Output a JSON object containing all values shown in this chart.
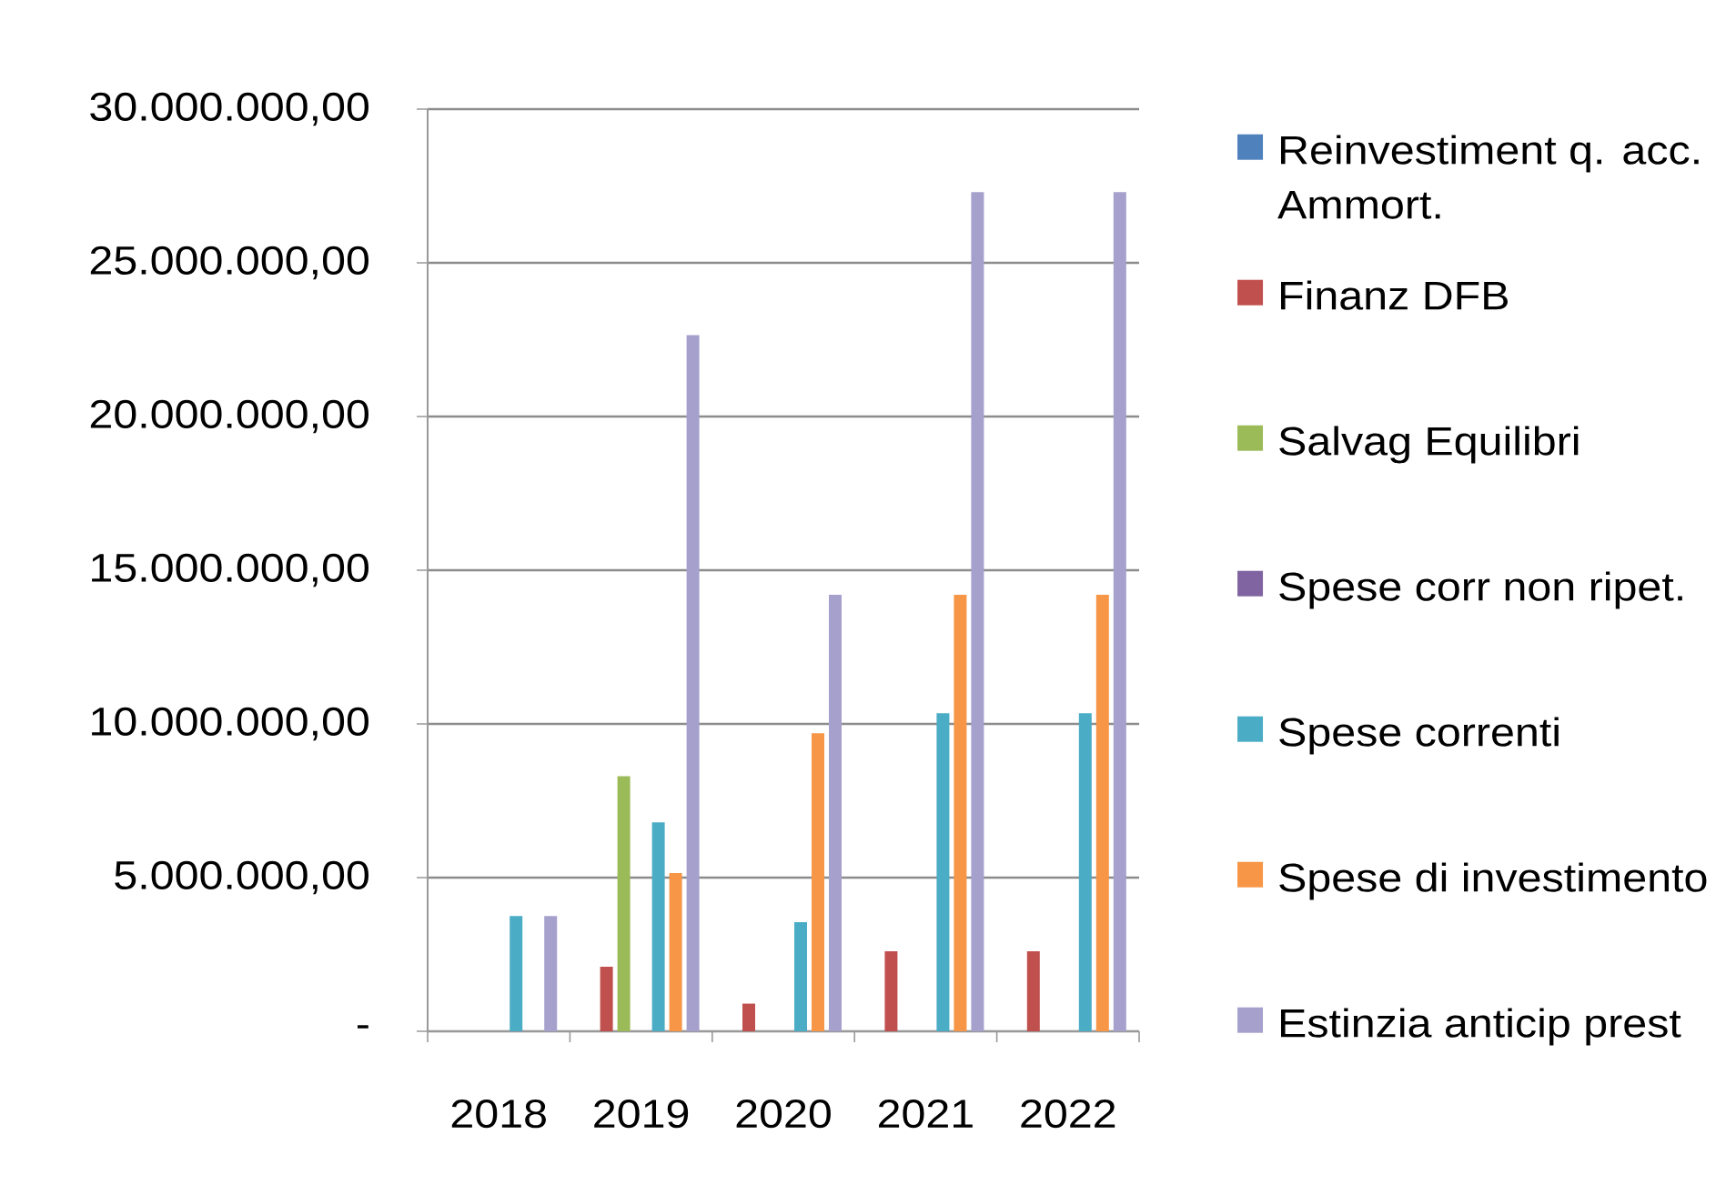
{
  "chart_data": {
    "type": "bar",
    "categories": [
      "2018",
      "2019",
      "2020",
      "2021",
      "2022"
    ],
    "series": [
      {
        "name": "Reinvestiment q. acc. Ammort.",
        "color": "#4f81bd",
        "values": [
          0,
          0,
          0,
          0,
          0
        ]
      },
      {
        "name": "Finanz DFB",
        "color": "#c0504d",
        "values": [
          0,
          2100000,
          900000,
          2600000,
          2600000
        ]
      },
      {
        "name": "Salvag Equilibri",
        "color": "#9bbb59",
        "values": [
          0,
          8300000,
          0,
          0,
          0
        ]
      },
      {
        "name": "Spese corr non ripet.",
        "color": "#8064a2",
        "values": [
          0,
          0,
          0,
          0,
          0
        ]
      },
      {
        "name": "Spese correnti",
        "color": "#4bacc6",
        "values": [
          3750000,
          6800000,
          3550000,
          10350000,
          10350000
        ]
      },
      {
        "name": "Spese di investimento",
        "color": "#f79646",
        "values": [
          0,
          5150000,
          9700000,
          14200000,
          14200000
        ]
      },
      {
        "name": "Estinzia anticip prest",
        "color": "#a5a0cc",
        "values": [
          3750000,
          22650000,
          14200000,
          27300000,
          27300000
        ]
      }
    ],
    "ylim": [
      0,
      30000000
    ],
    "yticks": [
      {
        "value": 0,
        "label": "-"
      },
      {
        "value": 5000000,
        "label": "5.000.000,00"
      },
      {
        "value": 10000000,
        "label": "10.000.000,00"
      },
      {
        "value": 15000000,
        "label": "15.000.000,00"
      },
      {
        "value": 20000000,
        "label": "20.000.000,00"
      },
      {
        "value": 25000000,
        "label": "25.000.000,00"
      },
      {
        "value": 30000000,
        "label": "30.000.000,00"
      }
    ],
    "grid": "y",
    "legend": "right"
  }
}
